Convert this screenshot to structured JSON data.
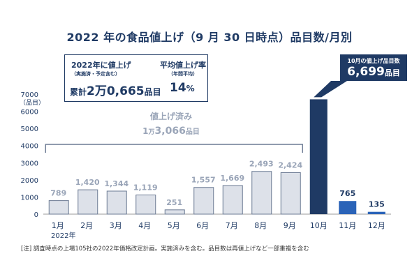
{
  "title": "2022 年の食品値上げ（9 月 30 日時点）品目数/月別",
  "info_box": {
    "left_line1": "2022年に値上げ",
    "left_line2": "（実施済・予定含む）",
    "left_prefix": "累計",
    "left_total": "2万0,665",
    "left_unit": "品目",
    "right_line1": "平均値上げ率",
    "right_line2": "（年間平均）",
    "right_value": "14",
    "right_unit": "%"
  },
  "october_box": {
    "label": "10月の値上げ品目数",
    "value": "6,699",
    "unit": "品目"
  },
  "bracket": {
    "label": "値上げ済み",
    "total": "1万3,066",
    "unit": "品目"
  },
  "note": "[注]  調査時点の上場105社の2022年価格改定計画。実施済みを含む。品目数は再値上げなど一部重複を含む",
  "colors": {
    "navy": "#1f3a64",
    "done_fill": "#dde1e9",
    "done_stroke": "#6b7a93",
    "done_label": "#9aa5b8",
    "future_fill": "#2a63b8",
    "october_fill": "#1f3a64"
  },
  "chart_data": {
    "type": "bar",
    "categories": [
      "1月",
      "2月",
      "3月",
      "4月",
      "5月",
      "6月",
      "7月",
      "8月",
      "9月",
      "10月",
      "11月",
      "12月"
    ],
    "values": [
      789,
      1420,
      1344,
      1119,
      251,
      1557,
      1669,
      2493,
      2424,
      6699,
      765,
      135
    ],
    "value_labels": [
      "789",
      "1,420",
      "1,344",
      "1,119",
      "251",
      "1,557",
      "1,669",
      "2,493",
      "2,424",
      "",
      "765",
      "135"
    ],
    "status": [
      "done",
      "done",
      "done",
      "done",
      "done",
      "done",
      "done",
      "done",
      "done",
      "october",
      "future",
      "future"
    ],
    "year_label": "2022年",
    "ylabel": "（品目）",
    "ylim": [
      0,
      7000
    ],
    "yticks": [
      0,
      1000,
      2000,
      3000,
      4000,
      5000,
      6000,
      7000
    ],
    "ytick_labels": [
      "0",
      "1000",
      "2000",
      "3000",
      "4000",
      "5000",
      "6000",
      "7000"
    ]
  }
}
